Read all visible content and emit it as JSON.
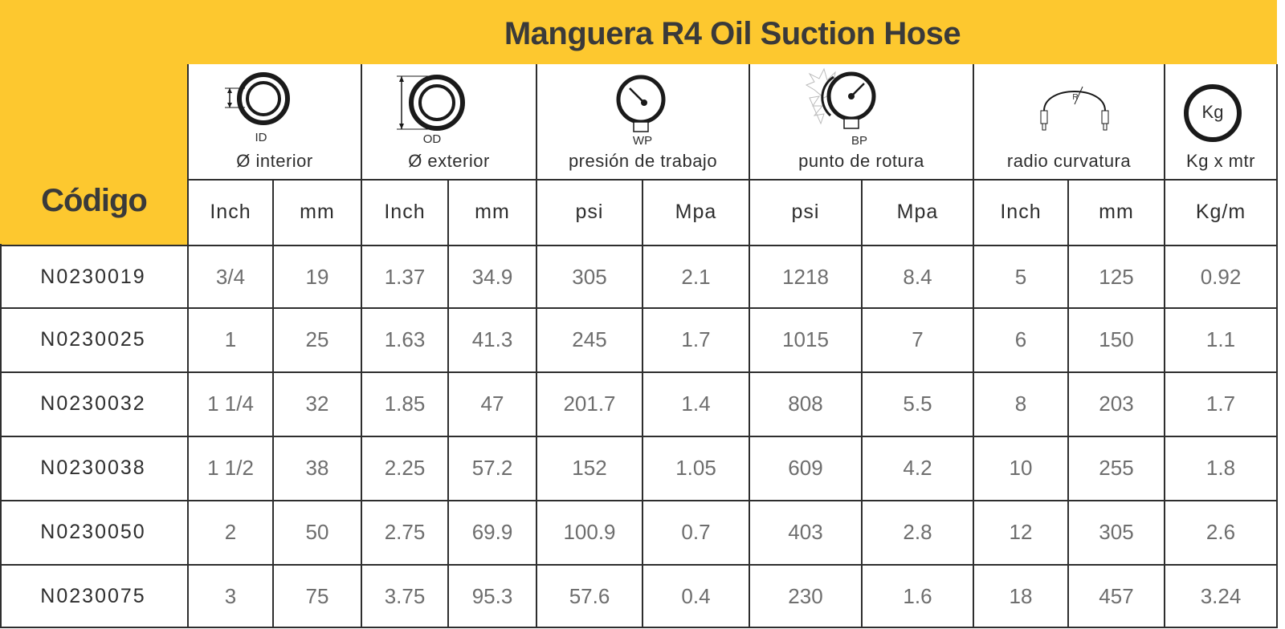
{
  "title": "Manguera R4 Oil Suction Hose",
  "code_header": "Código",
  "groups": [
    {
      "icon_name": "inner-diameter-icon",
      "icon_caption": "ID",
      "label": "Ø interior"
    },
    {
      "icon_name": "outer-diameter-icon",
      "icon_caption": "OD",
      "label": "Ø exterior"
    },
    {
      "icon_name": "working-pressure-gauge-icon",
      "icon_caption": "WP",
      "label": "presión de trabajo"
    },
    {
      "icon_name": "burst-pressure-gauge-icon",
      "icon_caption": "BP",
      "label": "punto de rotura"
    },
    {
      "icon_name": "bend-radius-icon",
      "icon_caption": "R",
      "label": "radio curvatura"
    },
    {
      "icon_name": "weight-kg-icon",
      "icon_caption": "Kg",
      "label": "Kg x mtr"
    }
  ],
  "units": [
    "Inch",
    "mm",
    "Inch",
    "mm",
    "psi",
    "Mpa",
    "psi",
    "Mpa",
    "Inch",
    "mm",
    "Kg/m"
  ],
  "rows": [
    {
      "code": "N0230019",
      "values": [
        "3/4",
        "19",
        "1.37",
        "34.9",
        "305",
        "2.1",
        "1218",
        "8.4",
        "5",
        "125",
        "0.92"
      ]
    },
    {
      "code": "N0230025",
      "values": [
        "1",
        "25",
        "1.63",
        "41.3",
        "245",
        "1.7",
        "1015",
        "7",
        "6",
        "150",
        "1.1"
      ]
    },
    {
      "code": "N0230032",
      "values": [
        "1 1/4",
        "32",
        "1.85",
        "47",
        "201.7",
        "1.4",
        "808",
        "5.5",
        "8",
        "203",
        "1.7"
      ]
    },
    {
      "code": "N0230038",
      "values": [
        "1 1/2",
        "38",
        "2.25",
        "57.2",
        "152",
        "1.05",
        "609",
        "4.2",
        "10",
        "255",
        "1.8"
      ]
    },
    {
      "code": "N0230050",
      "values": [
        "2",
        "50",
        "2.75",
        "69.9",
        "100.9",
        "0.7",
        "403",
        "2.8",
        "12",
        "305",
        "2.6"
      ]
    },
    {
      "code": "N0230075",
      "values": [
        "3",
        "75",
        "3.75",
        "95.3",
        "57.6",
        "0.4",
        "230",
        "1.6",
        "18",
        "457",
        "3.24"
      ]
    }
  ],
  "colors": {
    "accent": "#FDC82F",
    "text": "#2e2e2e",
    "value_text": "#6e6e6e"
  }
}
